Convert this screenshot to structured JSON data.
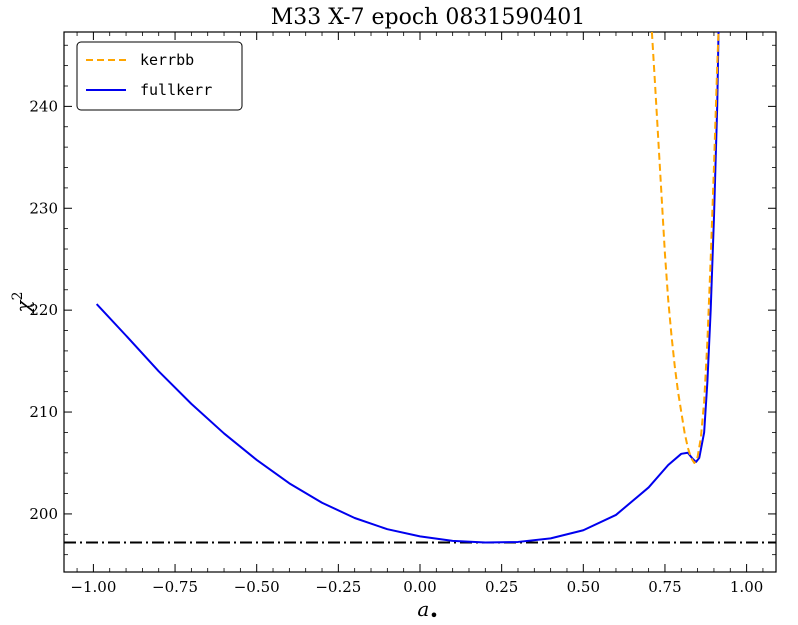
{
  "chart_data": {
    "type": "line",
    "title": "M33 X-7 epoch 0831590401",
    "xlabel": "a",
    "xlabel_symbol": "•",
    "ylabel": "χ",
    "ylabel_sup": "2",
    "xlim": [
      -1.09,
      1.09
    ],
    "ylim": [
      194.3,
      247.3
    ],
    "x_ticks": [
      -1.0,
      -0.75,
      -0.5,
      -0.25,
      0.0,
      0.25,
      0.5,
      0.75,
      1.0
    ],
    "x_tick_labels": [
      "−1.00",
      "−0.75",
      "−0.50",
      "−0.25",
      "0.00",
      "0.25",
      "0.50",
      "0.75",
      "1.00"
    ],
    "y_ticks": [
      200,
      210,
      220,
      230,
      240
    ],
    "y_tick_labels": [
      "200",
      "210",
      "220",
      "230",
      "240"
    ],
    "grid": false,
    "legend_position": "top-left",
    "reference_line": {
      "y": 197.2,
      "style": "dash-dot",
      "color": "#000000"
    },
    "series": [
      {
        "name": "kerrbb",
        "color": "#FFA500",
        "style": "dashed",
        "x": [
          0.71,
          0.72,
          0.73,
          0.74,
          0.75,
          0.76,
          0.77,
          0.78,
          0.79,
          0.8,
          0.81,
          0.82,
          0.83,
          0.84,
          0.85,
          0.86,
          0.87,
          0.88,
          0.89,
          0.9,
          0.91,
          0.914
        ],
        "y": [
          247.3,
          242.0,
          236.5,
          231.0,
          225.5,
          221.0,
          217.5,
          214.5,
          212.0,
          210.0,
          208.0,
          206.5,
          205.5,
          205.0,
          205.6,
          207.5,
          211.0,
          217.0,
          225.0,
          234.0,
          244.0,
          247.3
        ]
      },
      {
        "name": "fullkerr",
        "color": "#0000EE",
        "style": "solid",
        "x": [
          -0.99,
          -0.9,
          -0.8,
          -0.7,
          -0.6,
          -0.5,
          -0.4,
          -0.3,
          -0.2,
          -0.1,
          0.0,
          0.1,
          0.2,
          0.3,
          0.4,
          0.5,
          0.6,
          0.7,
          0.76,
          0.8,
          0.82,
          0.835,
          0.845,
          0.855,
          0.87,
          0.88,
          0.89,
          0.9,
          0.91,
          0.914
        ],
        "y": [
          220.6,
          217.5,
          214.0,
          210.8,
          207.9,
          205.3,
          203.0,
          201.1,
          199.6,
          198.5,
          197.8,
          197.35,
          197.2,
          197.25,
          197.6,
          198.4,
          199.9,
          202.6,
          204.8,
          205.9,
          206.0,
          205.4,
          205.1,
          205.5,
          208.0,
          213.0,
          220.0,
          229.0,
          240.0,
          247.3
        ]
      }
    ]
  }
}
